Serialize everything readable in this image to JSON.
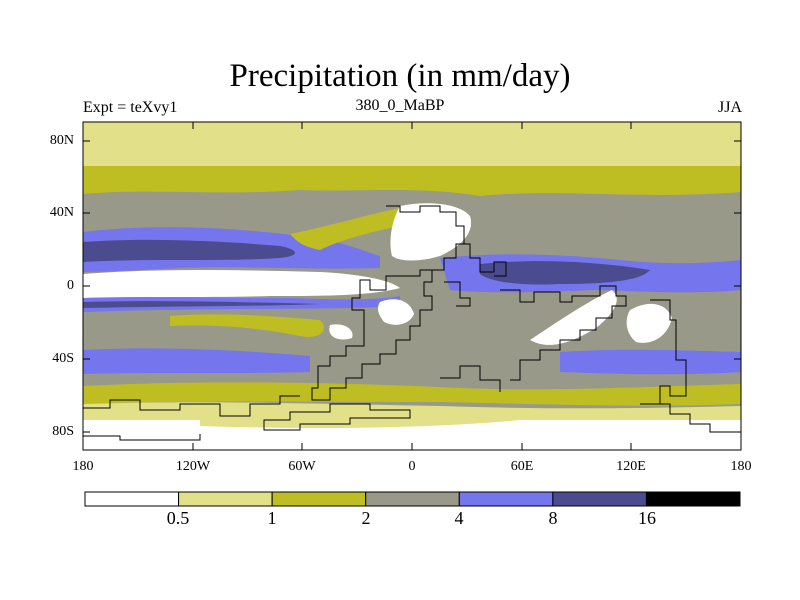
{
  "title": "Precipitation (in mm/day)",
  "subtitle_left": "Expt = teXvy1",
  "subtitle_center": "380_0_MaBP",
  "subtitle_right": "JJA",
  "lat_ticks": [
    "80N",
    "40N",
    "0",
    "40S",
    "80S"
  ],
  "lon_ticks": [
    "180",
    "120W",
    "60W",
    "0",
    "60E",
    "120E",
    "180"
  ],
  "legend": {
    "levels": [
      "0.5",
      "1",
      "2",
      "4",
      "8",
      "16"
    ],
    "colors": [
      "#ffffff",
      "#e3e08a",
      "#bebe22",
      "#99998a",
      "#7575ee",
      "#4b4b8f",
      "#000000"
    ]
  }
}
